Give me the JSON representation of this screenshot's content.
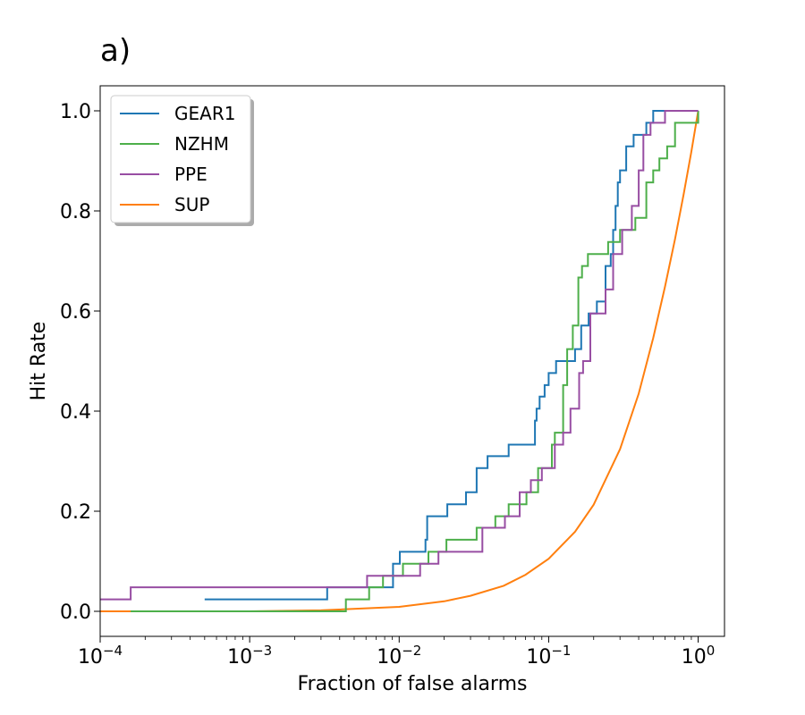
{
  "chart_data": {
    "type": "line",
    "title": "a)",
    "xlabel": "Fraction of false alarms",
    "ylabel": "Hit Rate",
    "xscale": "log",
    "xlim": [
      0.0001,
      1.5
    ],
    "ylim": [
      -0.05,
      1.05
    ],
    "x_tick_values": [
      0.0001,
      0.001,
      0.01,
      0.1,
      1
    ],
    "x_tick_base": "10",
    "x_tick_exponents": [
      "−4",
      "−3",
      "−2",
      "−1",
      "0"
    ],
    "y_tick_values": [
      0.0,
      0.2,
      0.4,
      0.6,
      0.8,
      1.0
    ],
    "y_tick_labels": [
      "0.0",
      "0.2",
      "0.4",
      "0.6",
      "0.8",
      "1.0"
    ],
    "grid": false,
    "legend_position": "top-left",
    "series": [
      {
        "name": "GEAR1",
        "color": "#1f77b4",
        "step": true,
        "x": [
          0.0005,
          0.0033,
          0.0091,
          0.0101,
          0.015,
          0.0154,
          0.021,
          0.028,
          0.033,
          0.039,
          0.054,
          0.081,
          0.083,
          0.087,
          0.094,
          0.1,
          0.112,
          0.15,
          0.165,
          0.185,
          0.21,
          0.24,
          0.26,
          0.27,
          0.28,
          0.29,
          0.3,
          0.33,
          0.37,
          0.45,
          0.5,
          0.6,
          1.0
        ],
        "y": [
          0.024,
          0.048,
          0.095,
          0.119,
          0.143,
          0.19,
          0.214,
          0.238,
          0.286,
          0.31,
          0.333,
          0.381,
          0.405,
          0.429,
          0.452,
          0.476,
          0.5,
          0.524,
          0.571,
          0.595,
          0.619,
          0.69,
          0.714,
          0.762,
          0.81,
          0.857,
          0.881,
          0.929,
          0.952,
          0.976,
          1.0,
          1.0,
          1.0
        ]
      },
      {
        "name": "NZHM",
        "color": "#4daf4a",
        "step": true,
        "x": [
          0.00016,
          0.0044,
          0.0063,
          0.0078,
          0.0106,
          0.0157,
          0.0207,
          0.033,
          0.044,
          0.054,
          0.071,
          0.085,
          0.105,
          0.11,
          0.125,
          0.133,
          0.145,
          0.158,
          0.167,
          0.183,
          0.25,
          0.3,
          0.38,
          0.45,
          0.5,
          0.55,
          0.62,
          0.7,
          1.0
        ],
        "y": [
          0.0,
          0.024,
          0.048,
          0.071,
          0.095,
          0.119,
          0.143,
          0.167,
          0.19,
          0.214,
          0.238,
          0.286,
          0.333,
          0.357,
          0.452,
          0.524,
          0.571,
          0.667,
          0.69,
          0.714,
          0.738,
          0.762,
          0.786,
          0.857,
          0.881,
          0.905,
          0.929,
          0.976,
          1.0
        ]
      },
      {
        "name": "PPE",
        "color": "#984ea3",
        "step": true,
        "x": [
          0.0001,
          0.00016,
          0.0061,
          0.0138,
          0.0183,
          0.036,
          0.051,
          0.064,
          0.076,
          0.09,
          0.11,
          0.125,
          0.14,
          0.16,
          0.17,
          0.19,
          0.24,
          0.27,
          0.31,
          0.36,
          0.4,
          0.43,
          0.48,
          0.6,
          1.0
        ],
        "y": [
          0.024,
          0.048,
          0.071,
          0.095,
          0.119,
          0.167,
          0.19,
          0.238,
          0.262,
          0.286,
          0.333,
          0.357,
          0.405,
          0.476,
          0.5,
          0.595,
          0.643,
          0.714,
          0.762,
          0.81,
          0.881,
          0.952,
          0.976,
          1.0,
          1.0
        ]
      },
      {
        "name": "SUP",
        "color": "#ff7f0e",
        "step": false,
        "x": [
          0.0001,
          0.001,
          0.003,
          0.01,
          0.02,
          0.03,
          0.05,
          0.07,
          0.1,
          0.15,
          0.2,
          0.3,
          0.4,
          0.5,
          0.6,
          0.7,
          0.8,
          0.9,
          1.0
        ],
        "y": [
          0.0,
          0.0,
          0.002,
          0.009,
          0.02,
          0.031,
          0.051,
          0.073,
          0.105,
          0.159,
          0.213,
          0.324,
          0.435,
          0.546,
          0.649,
          0.744,
          0.834,
          0.918,
          1.0
        ]
      }
    ]
  }
}
